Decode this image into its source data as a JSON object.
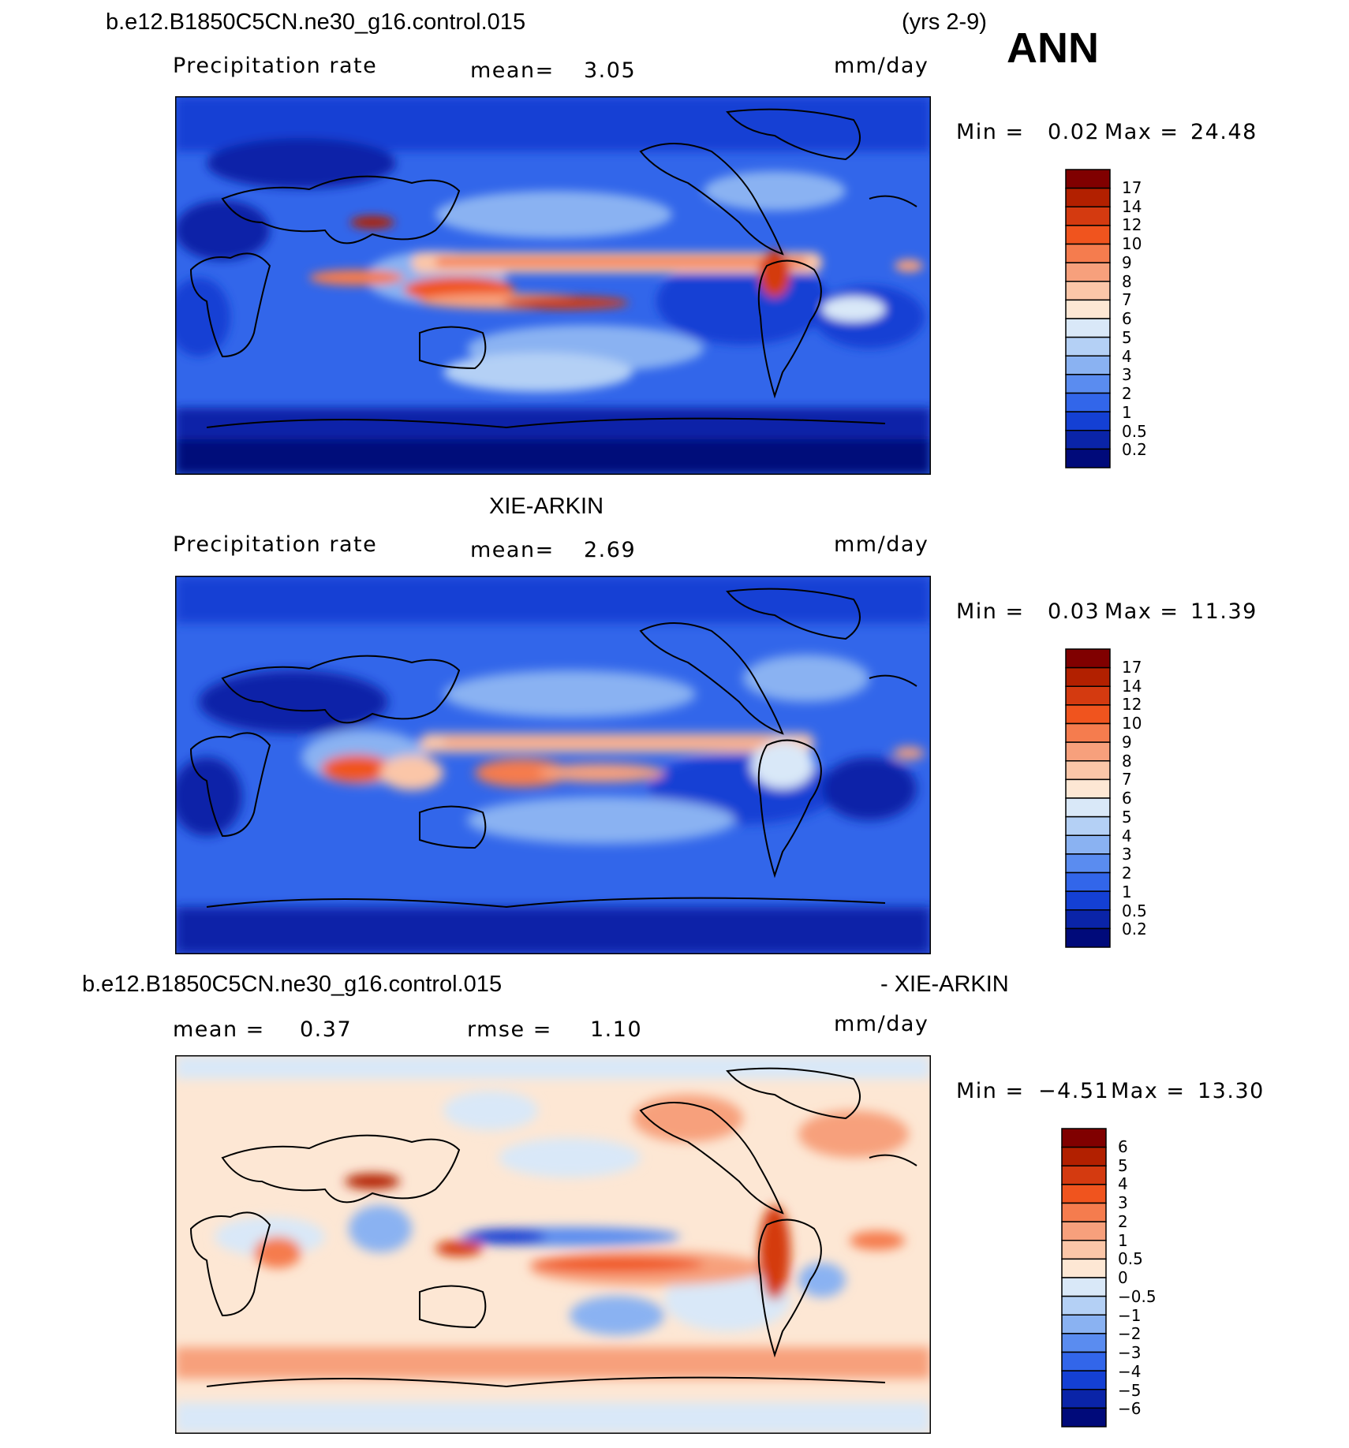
{
  "header": {
    "case_name": "b.e12.B1850C5CN.ne30_g16.control.015",
    "years": "(yrs 2-9)",
    "season": "ANN"
  },
  "panel_model": {
    "variable": "Precipitation  rate",
    "mean_label": "mean=",
    "mean_value": "3.05",
    "units": "mm/day",
    "min_label": "Min  =",
    "min_value": "0.02",
    "max_label": "Max  =",
    "max_value": "24.48",
    "colorbar_labels": [
      "17",
      "14",
      "12",
      "10",
      "9",
      "8",
      "7",
      "6",
      "5",
      "4",
      "3",
      "2",
      "1",
      "0.5",
      "0.2"
    ]
  },
  "panel_obs": {
    "title": "XIE-ARKIN",
    "variable": "Precipitation  rate",
    "mean_label": "mean=",
    "mean_value": "2.69",
    "units": "mm/day",
    "min_label": "Min  =",
    "min_value": "0.03",
    "max_label": "Max  =",
    "max_value": "11.39",
    "colorbar_labels": [
      "17",
      "14",
      "12",
      "10",
      "9",
      "8",
      "7",
      "6",
      "5",
      "4",
      "3",
      "2",
      "1",
      "0.5",
      "0.2"
    ]
  },
  "panel_diff": {
    "title_left": "b.e12.B1850C5CN.ne30_g16.control.015",
    "title_right": "- XIE-ARKIN",
    "mean_label": "mean =",
    "mean_value": "0.37",
    "rmse_label": "rmse =",
    "rmse_value": "1.10",
    "units": "mm/day",
    "min_label": "Min  =",
    "min_value": "−4.51",
    "max_label": "Max  =",
    "max_value": "13.30",
    "colorbar_labels": [
      "6",
      "5",
      "4",
      "3",
      "2",
      "1",
      "0.5",
      "0",
      "−0.5",
      "−1",
      "−2",
      "−3",
      "−4",
      "−5",
      "−6"
    ]
  },
  "colors": {
    "precip_scale": [
      "#800000",
      "#b22000",
      "#d43a10",
      "#f0541e",
      "#f57c4e",
      "#f7a07c",
      "#fbc6a8",
      "#fde7d4",
      "#d9e8f8",
      "#b4d0f5",
      "#8ab2f2",
      "#5a8cf0",
      "#3266ea",
      "#1440d4",
      "#0a24a8",
      "#000a7a"
    ],
    "diff_scale": [
      "#800000",
      "#b22000",
      "#d43a10",
      "#f0541e",
      "#f57c4e",
      "#f7a07c",
      "#fbc6a8",
      "#fde7d4",
      "#d9e8f8",
      "#b4d0f5",
      "#8ab2f2",
      "#5a8cf0",
      "#3266ea",
      "#1440d4",
      "#0a24a8",
      "#000a7a"
    ]
  }
}
